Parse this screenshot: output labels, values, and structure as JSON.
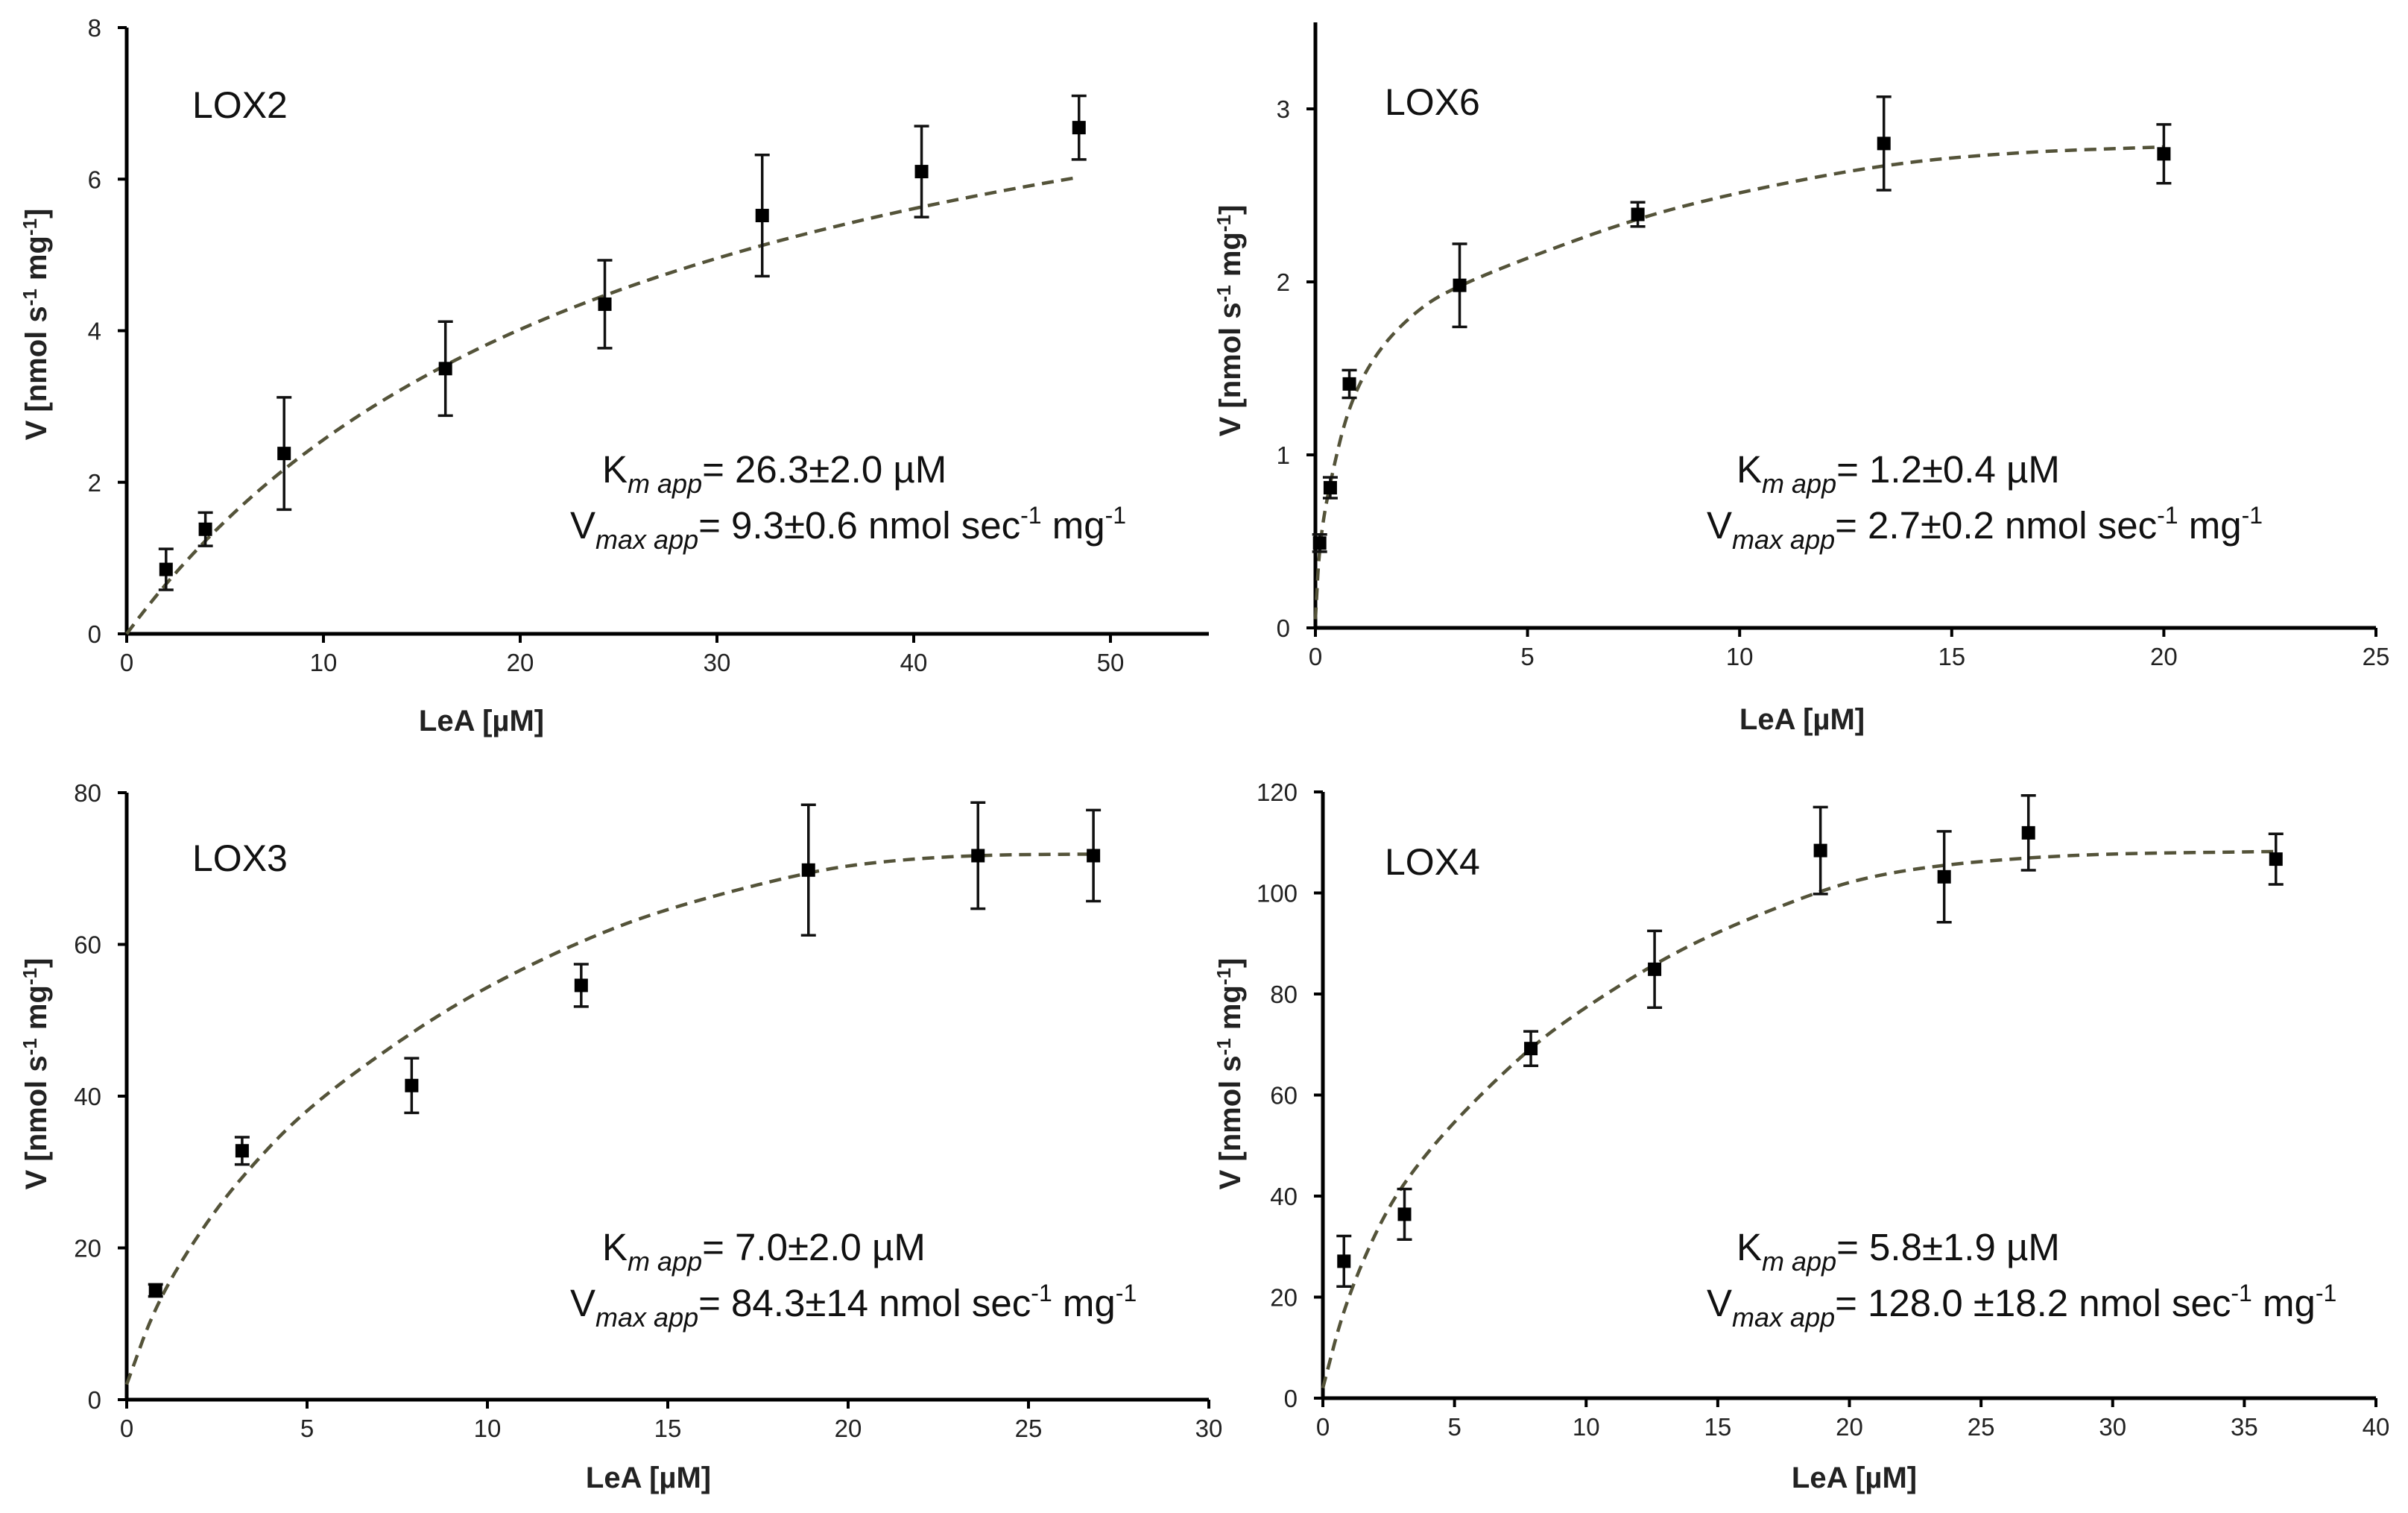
{
  "chart_data": [
    {
      "type": "scatter",
      "title": "LOX2",
      "xlabel": "LeA [µM]",
      "ylabel": "V [nmol s-1 mg-1]",
      "xlim": [
        0,
        55
      ],
      "ylim": [
        0,
        8
      ],
      "xticks": [
        0,
        10,
        20,
        30,
        40,
        50
      ],
      "yticks": [
        0,
        2,
        4,
        6,
        8
      ],
      "grid": false,
      "series": [
        {
          "name": "LOX2",
          "x": [
            2,
            4,
            8,
            16.2,
            24.3,
            32.3,
            40.4,
            48.4
          ],
          "y": [
            0.85,
            1.38,
            2.38,
            3.5,
            4.35,
            5.52,
            6.1,
            6.68
          ],
          "yerr": [
            0.27,
            0.22,
            0.74,
            0.62,
            0.58,
            0.8,
            0.6,
            0.42
          ]
        }
      ],
      "fit": {
        "model": "michaelis-menten",
        "Km": 26.3,
        "Vmax": 9.3,
        "x_end": 48.4
      },
      "annotation": {
        "km": {
          "symbol": "K",
          "sub": "m app",
          "value": "= 26.3±2.0 µM"
        },
        "vmax": {
          "symbol": "V",
          "sub": "max app",
          "value": "= 9.3±0.6 nmol sec",
          "sup": "-1",
          "unit_end": " mg",
          "sup2": "-1"
        }
      }
    },
    {
      "type": "scatter",
      "title": "LOX6",
      "xlabel": "LeA [µM]",
      "ylabel": "V [nmol s-1 mg-1]",
      "xlim": [
        0,
        25
      ],
      "ylim": [
        0,
        3.5
      ],
      "xticks": [
        0,
        5,
        10,
        15,
        20,
        25
      ],
      "yticks": [
        0,
        1,
        2,
        3
      ],
      "grid": false,
      "series": [
        {
          "name": "LOX6",
          "x": [
            0.1,
            0.35,
            0.8,
            3.4,
            7.6,
            13.4,
            20
          ],
          "y": [
            0.49,
            0.81,
            1.41,
            1.98,
            2.39,
            2.8,
            2.74
          ],
          "yerr": [
            0.05,
            0.06,
            0.08,
            0.24,
            0.07,
            0.27,
            0.17
          ]
        }
      ],
      "fit": {
        "model": "saturation",
        "points": [
          [
            0,
            0.05
          ],
          [
            0.1,
            0.5
          ],
          [
            0.35,
            0.85
          ],
          [
            0.8,
            1.3
          ],
          [
            1.5,
            1.62
          ],
          [
            2.5,
            1.86
          ],
          [
            3.4,
            1.98
          ],
          [
            5,
            2.14
          ],
          [
            7.6,
            2.37
          ],
          [
            10,
            2.52
          ],
          [
            13.4,
            2.68
          ],
          [
            16.5,
            2.75
          ],
          [
            20,
            2.78
          ]
        ]
      },
      "annotation": {
        "km": {
          "symbol": "K",
          "sub": "m app",
          "value": "= 1.2±0.4 µM"
        },
        "vmax": {
          "symbol": "V",
          "sub": "max app",
          "value": "= 2.7±0.2 nmol sec",
          "sup": "-1",
          "unit_end": " mg",
          "sup2": "-1"
        }
      }
    },
    {
      "type": "scatter",
      "title": "LOX3",
      "xlabel": "LeA [µM]",
      "ylabel": "V [nmol s-1 mg-1]",
      "xlim": [
        0,
        30
      ],
      "ylim": [
        0,
        80
      ],
      "xticks": [
        0,
        5,
        10,
        15,
        20,
        25,
        30
      ],
      "yticks": [
        0,
        20,
        40,
        60,
        80
      ],
      "grid": false,
      "series": [
        {
          "name": "LOX3",
          "x": [
            0.8,
            3.2,
            7.9,
            12.6,
            18.9,
            23.6,
            26.8
          ],
          "y": [
            14.4,
            32.8,
            41.4,
            54.6,
            69.8,
            71.7,
            71.7
          ],
          "yerr": [
            0.8,
            1.8,
            3.6,
            2.8,
            8.6,
            7.0,
            6.0
          ]
        }
      ],
      "fit": {
        "model": "saturation",
        "points": [
          [
            0,
            2
          ],
          [
            0.8,
            12.5
          ],
          [
            2,
            22
          ],
          [
            3.2,
            29.5
          ],
          [
            5,
            38.5
          ],
          [
            7.9,
            48.5
          ],
          [
            10,
            54.5
          ],
          [
            12.6,
            60.5
          ],
          [
            15,
            64.8
          ],
          [
            18.9,
            69.6
          ],
          [
            21,
            71
          ],
          [
            23.6,
            71.8
          ],
          [
            26.8,
            71.9
          ]
        ]
      },
      "annotation": {
        "km": {
          "symbol": "K",
          "sub": "m app",
          "value": "= 7.0±2.0 µM"
        },
        "vmax": {
          "symbol": "V",
          "sub": "max app",
          "value": "= 84.3±14 nmol sec",
          "sup": "-1",
          "unit_end": " mg",
          "sup2": "-1"
        }
      }
    },
    {
      "type": "scatter",
      "title": "LOX4",
      "xlabel": "LeA [µM]",
      "ylabel": "V [nmol s-1 mg-1]",
      "xlim": [
        0,
        40
      ],
      "ylim": [
        0,
        120
      ],
      "xticks": [
        0,
        5,
        10,
        15,
        20,
        25,
        30,
        35,
        40
      ],
      "yticks": [
        0,
        20,
        40,
        60,
        80,
        100,
        120
      ],
      "grid": false,
      "series": [
        {
          "name": "LOX4",
          "x": [
            0.8,
            3.1,
            7.9,
            12.6,
            18.9,
            23.6,
            26.8,
            36.2
          ],
          "y": [
            27.1,
            36.4,
            69.2,
            84.9,
            108.4,
            103.2,
            111.9,
            106.7
          ],
          "yerr": [
            5.0,
            5.0,
            3.4,
            7.6,
            8.6,
            9.0,
            7.4,
            5.0
          ]
        }
      ],
      "fit": {
        "model": "saturation",
        "points": [
          [
            0,
            2
          ],
          [
            0.8,
            18
          ],
          [
            2,
            33
          ],
          [
            3.1,
            43
          ],
          [
            5,
            55
          ],
          [
            7.9,
            69.6
          ],
          [
            10,
            77.5
          ],
          [
            12.6,
            86
          ],
          [
            15,
            92.4
          ],
          [
            18.9,
            100.5
          ],
          [
            21,
            103.5
          ],
          [
            23.6,
            105.6
          ],
          [
            26.8,
            107
          ],
          [
            30,
            107.8
          ],
          [
            36.2,
            108.2
          ]
        ]
      },
      "annotation": {
        "km": {
          "symbol": "K",
          "sub": "m app",
          "value": "= 5.8±1.9 µM"
        },
        "vmax": {
          "symbol": "V",
          "sub": "max app",
          "value": "= 128.0 ±18.2 nmol sec",
          "sup": "-1",
          "unit_end": " mg",
          "sup2": "-1"
        }
      }
    }
  ]
}
